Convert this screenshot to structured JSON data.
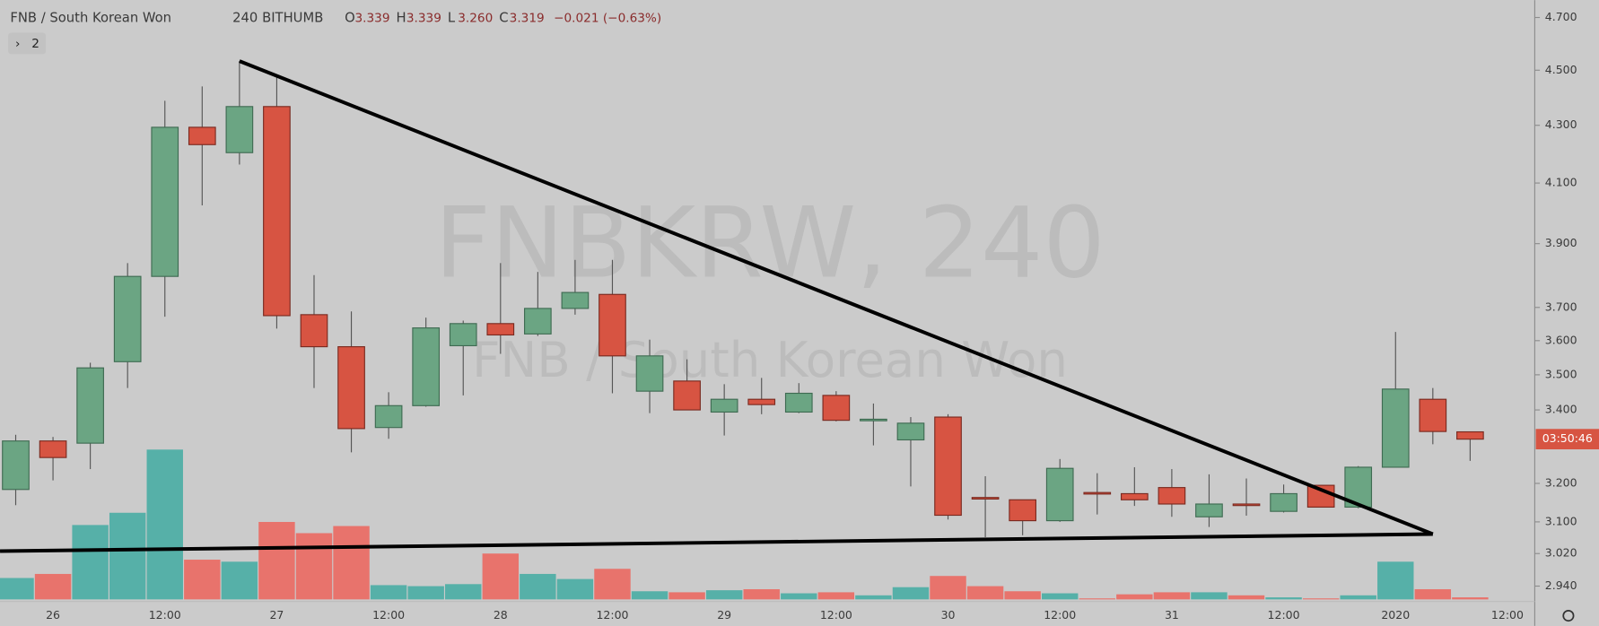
{
  "chart_data": {
    "type": "candlestick",
    "symbol": "FNB / South Korean Won",
    "interval": "240",
    "exchange": "BITHUMB",
    "ohlc_legend": [
      {
        "label": "O",
        "value": "3.339"
      },
      {
        "label": "H",
        "value": "3.339"
      },
      {
        "label": "L",
        "value": "3.260"
      },
      {
        "label": "C",
        "value": "3.319"
      }
    ],
    "change": "−0.021 (−0.63%)",
    "indicators_button": "2",
    "watermark": "FNBKRW, 240",
    "watermark_subtitle": "FNB / South Korean Won",
    "countdown": "03:50:46",
    "categories": [
      null,
      "26",
      null,
      null,
      "12:00",
      null,
      null,
      "27",
      null,
      null,
      "12:00",
      null,
      null,
      "28",
      null,
      null,
      "12:00",
      null,
      null,
      "29",
      null,
      null,
      "12:00",
      null,
      null,
      "30",
      null,
      null,
      "12:00",
      null,
      null,
      "31",
      null,
      null,
      "12:00",
      null,
      null,
      "2020",
      null,
      null,
      "12:00"
    ],
    "open": [
      3.184,
      3.314,
      3.308,
      3.538,
      3.796,
      4.293,
      4.204,
      4.367,
      3.678,
      3.582,
      3.351,
      3.412,
      3.585,
      3.651,
      3.62,
      3.697,
      3.74,
      3.453,
      3.482,
      3.394,
      3.43,
      3.394,
      3.441,
      3.371,
      3.317,
      3.38,
      3.163,
      3.157,
      3.103,
      3.176,
      3.173,
      3.189,
      3.113,
      3.146,
      3.127,
      3.195,
      3.138,
      3.243,
      3.43,
      3.339,
      null
    ],
    "high": [
      3.331,
      3.325,
      3.535,
      3.838,
      4.388,
      4.44,
      4.534,
      4.474,
      3.8,
      3.688,
      3.45,
      3.669,
      3.66,
      3.838,
      3.81,
      3.848,
      3.848,
      3.603,
      3.545,
      3.473,
      3.491,
      3.476,
      3.453,
      3.418,
      3.38,
      3.388,
      3.219,
      3.157,
      3.265,
      3.227,
      3.243,
      3.238,
      3.224,
      3.213,
      3.197,
      3.195,
      3.246,
      3.626,
      3.462,
      3.339,
      null
    ],
    "low": [
      3.143,
      3.208,
      3.238,
      3.462,
      3.672,
      4.025,
      4.163,
      3.636,
      3.462,
      3.283,
      3.32,
      3.409,
      3.441,
      3.561,
      3.614,
      3.678,
      3.447,
      3.391,
      3.4,
      3.329,
      3.388,
      3.391,
      3.368,
      3.302,
      3.192,
      3.106,
      3.061,
      3.066,
      3.1,
      3.119,
      3.141,
      3.113,
      3.087,
      3.116,
      3.124,
      3.138,
      3.135,
      3.243,
      3.305,
      3.26,
      null
    ],
    "close": [
      3.314,
      3.269,
      3.52,
      3.796,
      4.293,
      4.232,
      4.367,
      3.675,
      3.582,
      3.348,
      3.412,
      3.638,
      3.651,
      3.617,
      3.697,
      3.746,
      3.555,
      3.555,
      3.4,
      3.43,
      3.415,
      3.447,
      3.371,
      3.374,
      3.363,
      3.117,
      3.16,
      3.103,
      3.24,
      3.173,
      3.157,
      3.146,
      3.146,
      3.143,
      3.173,
      3.138,
      3.243,
      3.459,
      3.34,
      3.319,
      null
    ],
    "volume": [
      21,
      25,
      73,
      85,
      147,
      39,
      37,
      76,
      65,
      72,
      14,
      13,
      15,
      45,
      25,
      20,
      30,
      8,
      7,
      9,
      10,
      6,
      7,
      4,
      12,
      23,
      13,
      8,
      6,
      1,
      5,
      7,
      7,
      4,
      2,
      1,
      4,
      37,
      10,
      2,
      null
    ],
    "up_color": "#6ba583",
    "down_color": "#d75442",
    "volume_up_color": "#56b0a8",
    "volume_down_color": "#e8736c",
    "log_scale": true,
    "ylim": [
      2.903,
      4.768
    ],
    "yticks": [
      {
        "value": 4.7,
        "label": "4.700"
      },
      {
        "value": 4.5,
        "label": "4.500"
      },
      {
        "value": 4.3,
        "label": "4.300"
      },
      {
        "value": 4.1,
        "label": "4.100"
      },
      {
        "value": 3.9,
        "label": "3.900"
      },
      {
        "value": 3.7,
        "label": "3.700"
      },
      {
        "value": 3.6,
        "label": "3.600"
      },
      {
        "value": 3.5,
        "label": "3.500"
      },
      {
        "value": 3.4,
        "label": "3.400"
      },
      {
        "value": 3.2,
        "label": "3.200"
      },
      {
        "value": 3.1,
        "label": "3.100"
      },
      {
        "value": 3.02,
        "label": "3.020"
      },
      {
        "value": 2.94,
        "label": "2.940"
      }
    ],
    "trendlines": [
      {
        "points": [
          [
            6,
            4.534
          ],
          [
            38,
            3.069
          ]
        ]
      },
      {
        "points": [
          [
            -0.42,
            3.026
          ],
          [
            38,
            3.069
          ]
        ]
      }
    ]
  }
}
